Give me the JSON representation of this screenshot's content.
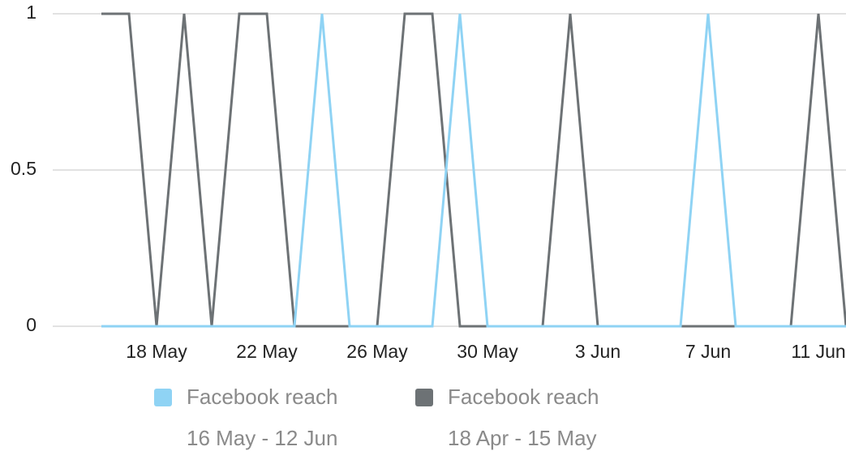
{
  "chart_data": {
    "type": "line",
    "categories": [
      null,
      null,
      "18 May",
      null,
      null,
      null,
      "22 May",
      null,
      null,
      null,
      "26 May",
      null,
      null,
      null,
      "30 May",
      null,
      null,
      null,
      "3 Jun",
      null,
      null,
      null,
      "7 Jun",
      null,
      null,
      null,
      "11 Jun",
      null
    ],
    "series": [
      {
        "name": "Facebook reach",
        "period": "16 May - 12 Jun",
        "color": "#8fd3f4",
        "values": [
          0,
          0,
          0,
          0,
          0,
          0,
          0,
          0,
          1,
          0,
          0,
          0,
          0,
          1,
          0,
          0,
          0,
          0,
          0,
          0,
          0,
          0,
          1,
          0,
          0,
          0,
          0,
          0
        ]
      },
      {
        "name": "Facebook reach",
        "period": "18 Apr - 15 May",
        "color": "#6d7275",
        "values": [
          1,
          1,
          0,
          1,
          0,
          1,
          1,
          0,
          0,
          0,
          0,
          1,
          1,
          0,
          0,
          0,
          0,
          1,
          0,
          0,
          0,
          0,
          0,
          0,
          0,
          0,
          1,
          0
        ]
      }
    ],
    "ylim": [
      0,
      1
    ],
    "yticks": [
      0,
      0.5,
      1
    ],
    "grid": true
  }
}
